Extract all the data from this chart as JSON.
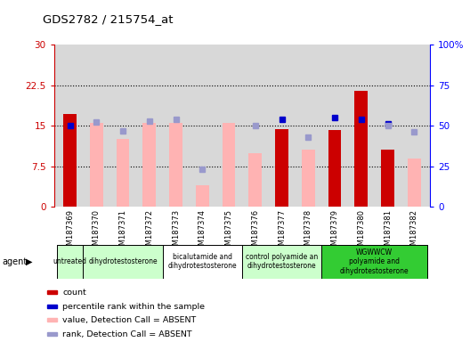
{
  "title": "GDS2782 / 215754_at",
  "samples": [
    "GSM187369",
    "GSM187370",
    "GSM187371",
    "GSM187372",
    "GSM187373",
    "GSM187374",
    "GSM187375",
    "GSM187376",
    "GSM187377",
    "GSM187378",
    "GSM187379",
    "GSM187380",
    "GSM187381",
    "GSM187382"
  ],
  "count_values": [
    17.2,
    null,
    null,
    null,
    null,
    null,
    null,
    null,
    14.3,
    null,
    14.2,
    21.5,
    10.5,
    null
  ],
  "absent_value": [
    null,
    15.5,
    12.5,
    15.5,
    15.5,
    4.0,
    15.5,
    10.0,
    null,
    10.5,
    null,
    null,
    null,
    9.0
  ],
  "percentile_rank_present": [
    50,
    null,
    null,
    null,
    null,
    null,
    null,
    null,
    54,
    null,
    55,
    54,
    51,
    null
  ],
  "percentile_rank_absent": [
    null,
    52,
    47,
    53,
    54,
    23,
    null,
    50,
    null,
    43,
    null,
    null,
    50,
    46
  ],
  "agent_groups": [
    {
      "label": "untreated",
      "start": 0,
      "end": 1,
      "color": "#ccffcc"
    },
    {
      "label": "dihydrotestosterone",
      "start": 1,
      "end": 4,
      "color": "#ccffcc"
    },
    {
      "label": "bicalutamide and\ndihydrotestosterone",
      "start": 4,
      "end": 7,
      "color": "#ffffff"
    },
    {
      "label": "control polyamide an\ndihydrotestosterone",
      "start": 7,
      "end": 10,
      "color": "#ccffcc"
    },
    {
      "label": "WGWWCW\npolyamide and\ndihydrotestosterone",
      "start": 10,
      "end": 14,
      "color": "#33cc33"
    }
  ],
  "left_ylim": [
    0,
    30
  ],
  "right_ylim": [
    0,
    100
  ],
  "left_yticks": [
    0,
    7.5,
    15,
    22.5,
    30
  ],
  "right_yticks": [
    0,
    25,
    50,
    75,
    100
  ],
  "left_yticklabels": [
    "0",
    "7.5",
    "15",
    "22.5",
    "30"
  ],
  "right_yticklabels": [
    "0",
    "25",
    "50",
    "75",
    "100%"
  ],
  "count_color": "#cc0000",
  "absent_bar_color": "#ffb3b3",
  "present_dot_color": "#0000cc",
  "absent_dot_color": "#9999cc",
  "plot_bg": "#d8d8d8",
  "legend_items": [
    {
      "color": "#cc0000",
      "label": "count"
    },
    {
      "color": "#0000cc",
      "label": "percentile rank within the sample"
    },
    {
      "color": "#ffb3b3",
      "label": "value, Detection Call = ABSENT"
    },
    {
      "color": "#9999cc",
      "label": "rank, Detection Call = ABSENT"
    }
  ]
}
